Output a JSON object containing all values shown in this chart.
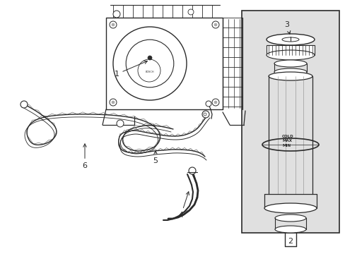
{
  "bg_color": "#ffffff",
  "lc": "#2a2a2a",
  "box_bg": "#e0e0e0",
  "figsize": [
    4.89,
    3.6
  ],
  "dpi": 100,
  "xlim": [
    0,
    489
  ],
  "ylim": [
    0,
    360
  ]
}
